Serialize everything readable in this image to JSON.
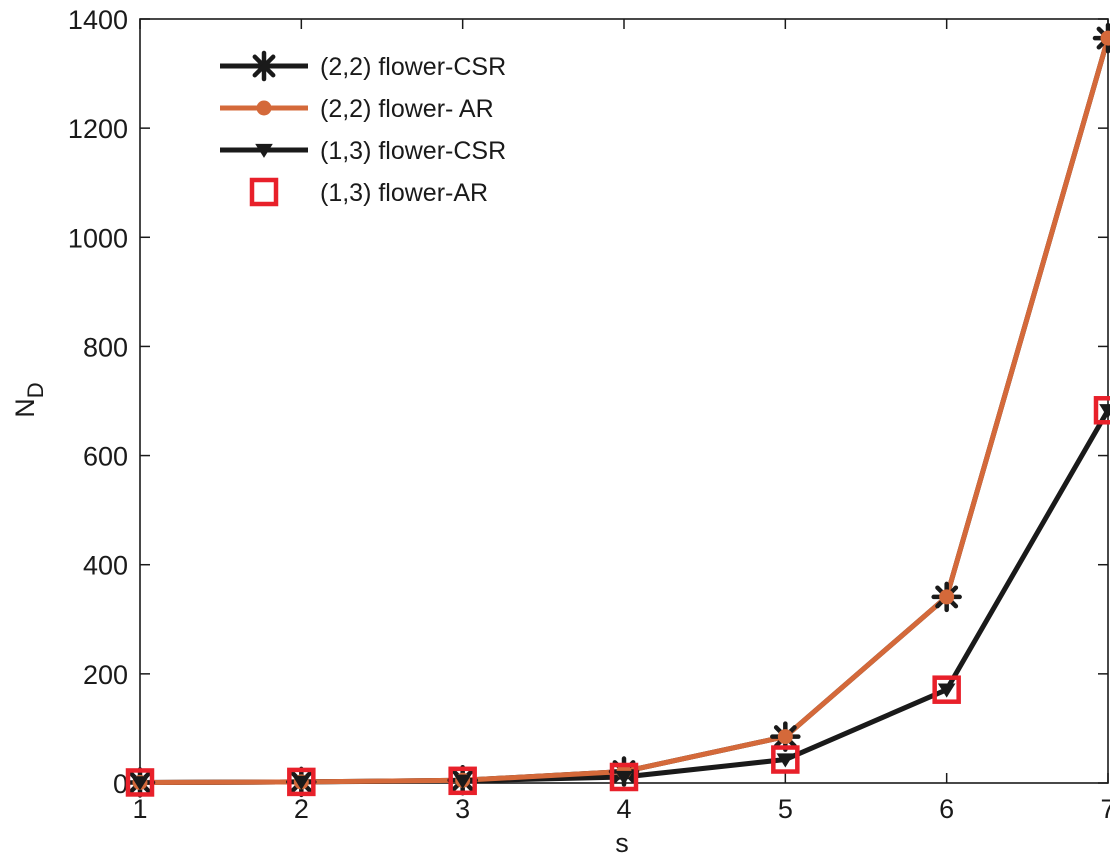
{
  "chart_data": {
    "type": "line",
    "title": "",
    "xlabel": "s",
    "ylabel_main": "N",
    "ylabel_sub": "D",
    "xlim": [
      1,
      7
    ],
    "ylim": [
      0,
      1400
    ],
    "x_ticks": [
      1,
      2,
      3,
      4,
      5,
      6,
      7
    ],
    "y_ticks": [
      0,
      200,
      400,
      600,
      800,
      1000,
      1200,
      1400
    ],
    "grid": false,
    "legend_position": "top-left",
    "x": [
      1,
      2,
      3,
      4,
      5,
      6,
      7
    ],
    "series": [
      {
        "name": "(2,2) flower-CSR",
        "marker": "asterisk",
        "line": true,
        "color": "#1a1a1a",
        "values": [
          1,
          2,
          5,
          21,
          85,
          341,
          1365
        ]
      },
      {
        "name": "(2,2) flower- AR",
        "marker": "circle",
        "line": true,
        "color": "#d4693a",
        "values": [
          1,
          2,
          5,
          21,
          85,
          341,
          1365
        ]
      },
      {
        "name": "(1,3) flower-CSR",
        "marker": "triangle-down",
        "line": true,
        "color": "#1a1a1a",
        "values": [
          1,
          2,
          4,
          11,
          43,
          171,
          683
        ]
      },
      {
        "name": "(1,3) flower-AR",
        "marker": "square",
        "line": false,
        "color": "#e8202a",
        "values": [
          1,
          2,
          4,
          11,
          43,
          171,
          683
        ]
      }
    ]
  }
}
